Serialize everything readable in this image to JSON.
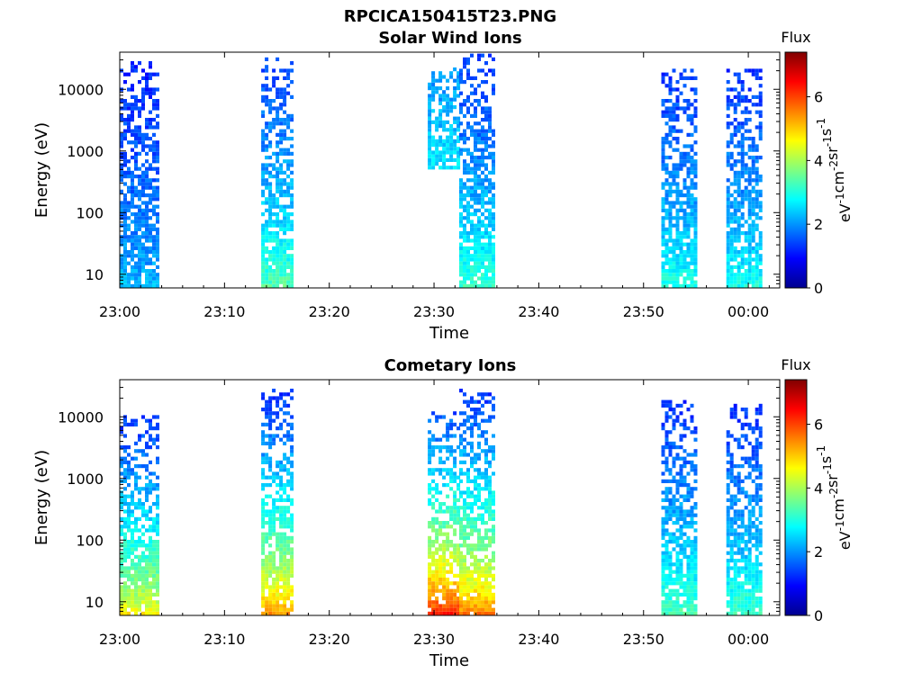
{
  "figure_title": "RPCICA150415T23.PNG",
  "chart_data": [
    {
      "type": "heatmap",
      "title": "Solar Wind Ions",
      "xlabel": "Time",
      "ylabel": "Energy (eV)",
      "x_tick_labels": [
        "23:00",
        "23:10",
        "23:20",
        "23:30",
        "23:40",
        "23:50",
        "00:00"
      ],
      "x_tick_minutes": [
        0,
        10,
        20,
        30,
        40,
        50,
        60
      ],
      "xlim_minutes": [
        0,
        63
      ],
      "y_tick_labels": [
        "10",
        "100",
        "1000",
        "10000"
      ],
      "y_tick_values": [
        10,
        100,
        1000,
        10000
      ],
      "ylim": [
        6,
        40000
      ],
      "y_scale": "log",
      "colorbar": {
        "title": "Flux",
        "label": "eV-1cm-2sr-1s-1",
        "tick_labels": [
          "0",
          "2",
          "4",
          "6"
        ],
        "tick_values": [
          0,
          2,
          4,
          6
        ],
        "range": [
          0,
          7.4
        ]
      },
      "bursts": [
        {
          "t_start": 0.0,
          "t_end": 3.7,
          "e_min": 6,
          "e_max": 28000,
          "flux_high": 2.4,
          "flux_low": 1.2
        },
        {
          "t_start": 13.5,
          "t_end": 16.3,
          "e_min": 6,
          "e_max": 30000,
          "flux_high": 3.6,
          "flux_low": 1.4
        },
        {
          "t_start": 29.4,
          "t_end": 32.4,
          "e_min": 500,
          "e_max": 20000,
          "flux_high": 2.8,
          "flux_low": 2.0
        },
        {
          "t_start": 32.4,
          "t_end": 35.8,
          "e_min": 6,
          "e_max": 35000,
          "flux_high": 3.4,
          "flux_low": 1.3
        },
        {
          "t_start": 51.7,
          "t_end": 55.1,
          "e_min": 6,
          "e_max": 20000,
          "flux_high": 3.2,
          "flux_low": 1.3
        },
        {
          "t_start": 57.9,
          "t_end": 61.3,
          "e_min": 6,
          "e_max": 20000,
          "flux_high": 3.1,
          "flux_low": 1.3
        }
      ]
    },
    {
      "type": "heatmap",
      "title": "Cometary Ions",
      "xlabel": "Time",
      "ylabel": "Energy (eV)",
      "x_tick_labels": [
        "23:00",
        "23:10",
        "23:20",
        "23:30",
        "23:40",
        "23:50",
        "00:00"
      ],
      "x_tick_minutes": [
        0,
        10,
        20,
        30,
        40,
        50,
        60
      ],
      "xlim_minutes": [
        0,
        63
      ],
      "y_tick_labels": [
        "10",
        "100",
        "1000",
        "10000"
      ],
      "y_tick_values": [
        10,
        100,
        1000,
        10000
      ],
      "ylim": [
        6,
        40000
      ],
      "y_scale": "log",
      "colorbar": {
        "title": "Flux",
        "label": "eV-1cm-2sr-1s-1",
        "tick_labels": [
          "0",
          "2",
          "4",
          "6"
        ],
        "tick_values": [
          0,
          2,
          4,
          6
        ],
        "range": [
          0,
          7.4
        ]
      },
      "bursts": [
        {
          "t_start": 0.0,
          "t_end": 3.7,
          "e_min": 6,
          "e_max": 10000,
          "flux_high": 5.0,
          "flux_low": 1.3
        },
        {
          "t_start": 13.5,
          "t_end": 16.3,
          "e_min": 6,
          "e_max": 25000,
          "flux_high": 5.8,
          "flux_low": 1.3
        },
        {
          "t_start": 29.4,
          "t_end": 32.4,
          "e_min": 6,
          "e_max": 12000,
          "flux_high": 6.8,
          "flux_low": 1.5
        },
        {
          "t_start": 32.4,
          "t_end": 35.8,
          "e_min": 6,
          "e_max": 28000,
          "flux_high": 6.0,
          "flux_low": 1.3
        },
        {
          "t_start": 51.7,
          "t_end": 55.1,
          "e_min": 6,
          "e_max": 18000,
          "flux_high": 3.6,
          "flux_low": 1.3
        },
        {
          "t_start": 57.9,
          "t_end": 61.3,
          "e_min": 6,
          "e_max": 15000,
          "flux_high": 3.5,
          "flux_low": 1.3
        }
      ]
    }
  ]
}
